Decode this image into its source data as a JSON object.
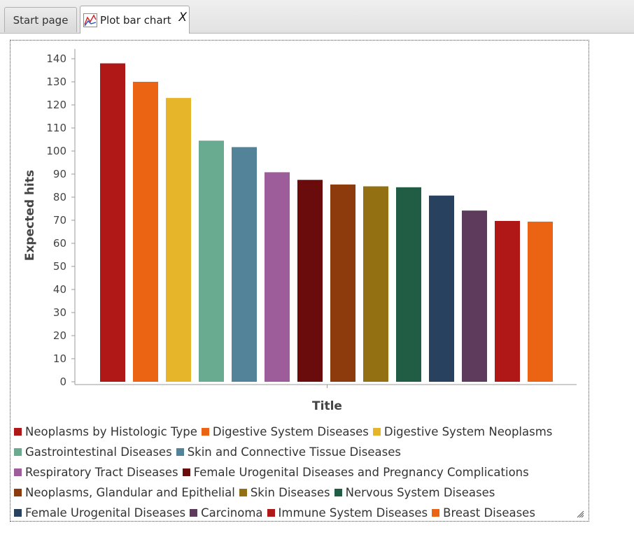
{
  "tabs": [
    {
      "label": "Start page"
    },
    {
      "label": "Plot bar chart",
      "close": "X"
    }
  ],
  "chart_data": {
    "type": "bar",
    "xlabel": "Title",
    "ylabel": "Expected hits",
    "ylim": [
      0,
      140
    ],
    "yticks": [
      0,
      10,
      20,
      30,
      40,
      50,
      60,
      70,
      80,
      90,
      100,
      110,
      120,
      130,
      140
    ],
    "grid": false,
    "legend_position": "bottom",
    "categories": [
      "Neoplasms by Histologic Type",
      "Digestive System Diseases",
      "Digestive System Neoplasms",
      "Gastrointestinal Diseases",
      "Skin and Connective Tissue Diseases",
      "Respiratory Tract Diseases",
      "Female Urogenital Diseases and Pregnancy Complications",
      "Neoplasms, Glandular and Epithelial",
      "Skin Diseases",
      "Nervous System Diseases",
      "Female Urogenital Diseases",
      "Carcinoma",
      "Immune System Diseases",
      "Breast Diseases"
    ],
    "values": [
      138,
      130,
      123,
      104.5,
      101.7,
      90.8,
      87.5,
      85.5,
      84.7,
      84.3,
      80.7,
      74.2,
      69.7,
      69.4
    ],
    "colors": [
      "#b01818",
      "#ea6413",
      "#e6b52a",
      "#69ab90",
      "#538399",
      "#9d5d9b",
      "#6b0c0c",
      "#8d3b0d",
      "#937112",
      "#215c45",
      "#28415f",
      "#5e3a5c",
      "#b01818",
      "#ea6413"
    ]
  }
}
